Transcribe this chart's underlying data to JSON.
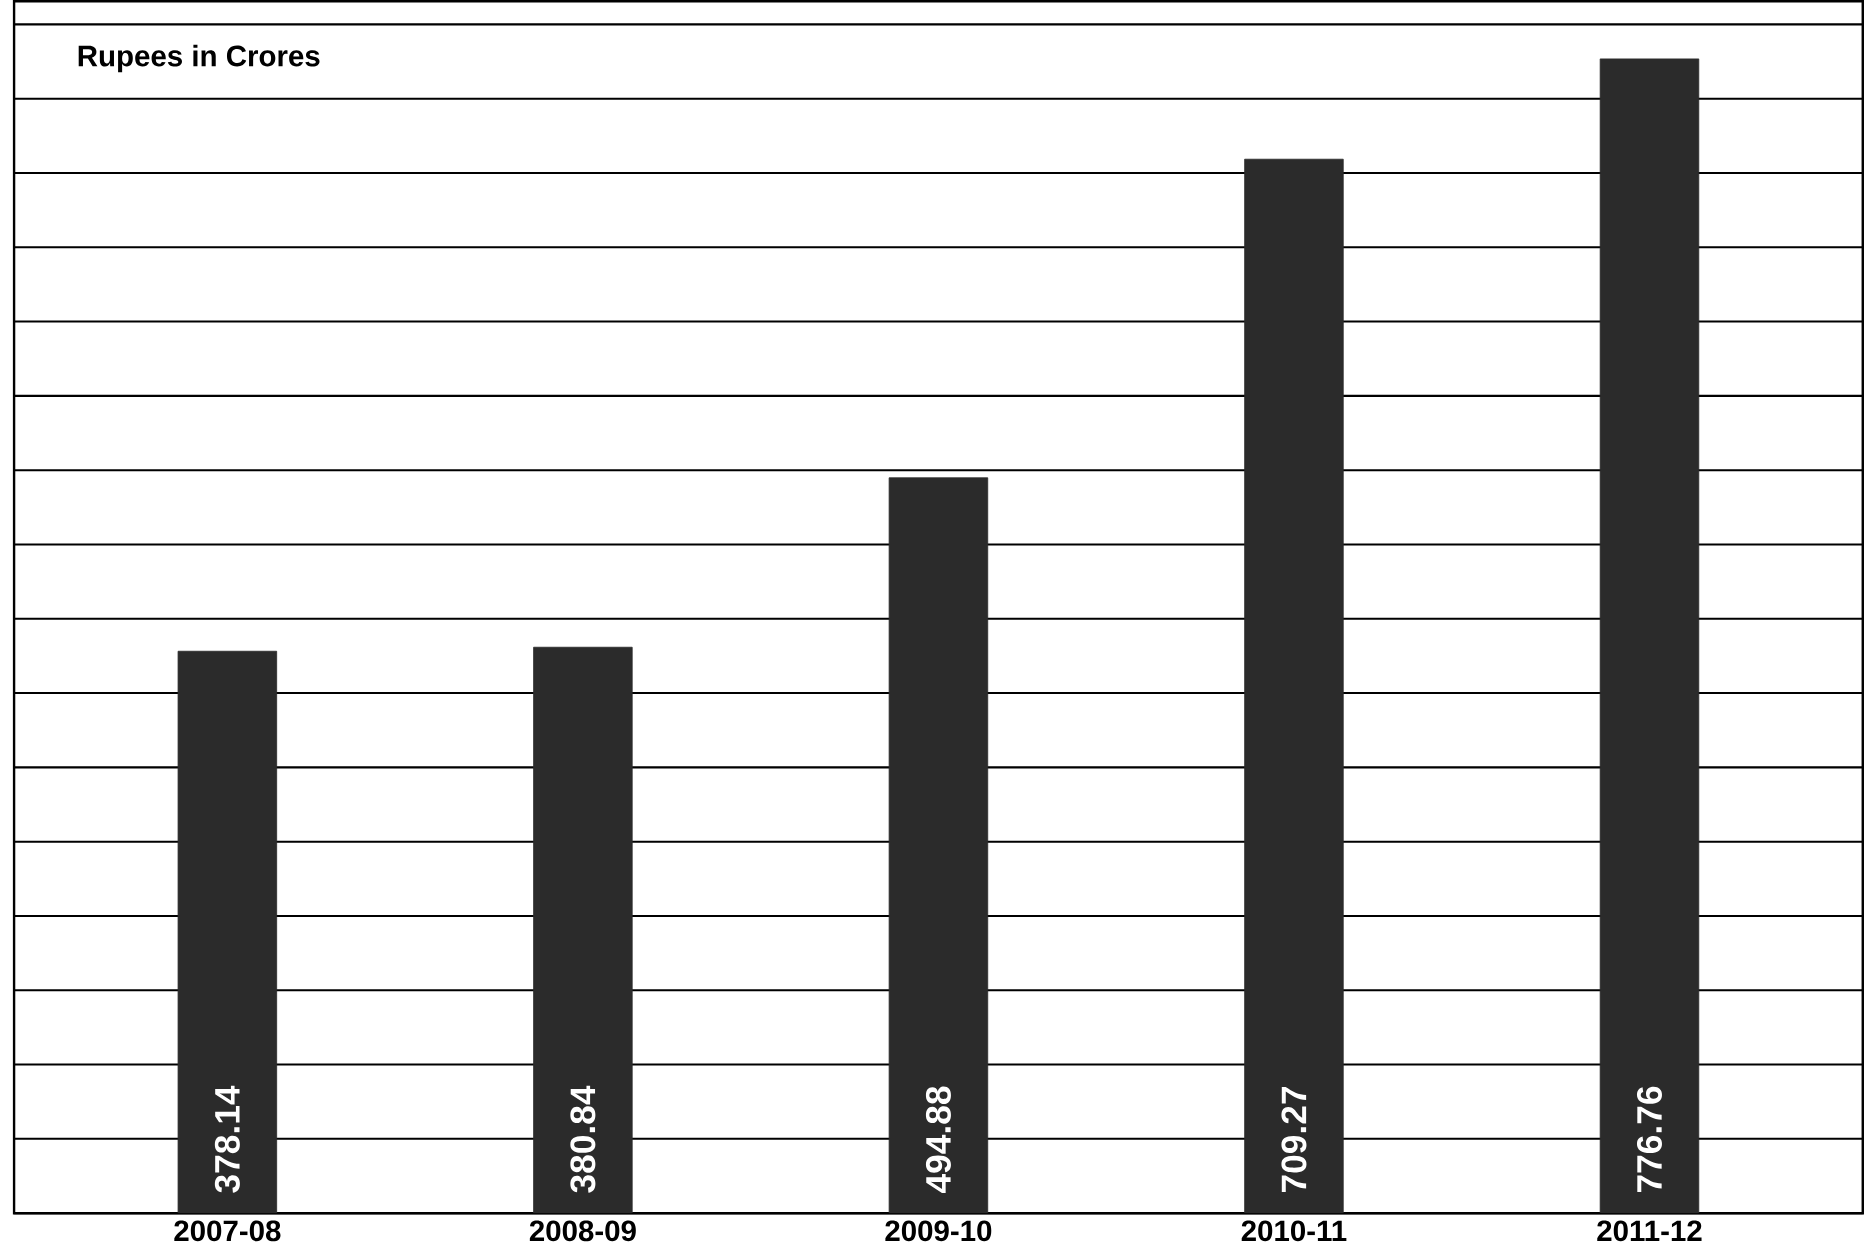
{
  "chart_data": {
    "type": "bar",
    "ylabel": "Rupees  in Crores",
    "categories": [
      "2007-08",
      "2008-09",
      "2009-10",
      "2010-11",
      "2011-12"
    ],
    "values": [
      378.14,
      380.84,
      494.88,
      709.27,
      776.76
    ],
    "color": "#2b2b2b",
    "data_labels": true,
    "grid": "y",
    "tick_labels": "x"
  }
}
